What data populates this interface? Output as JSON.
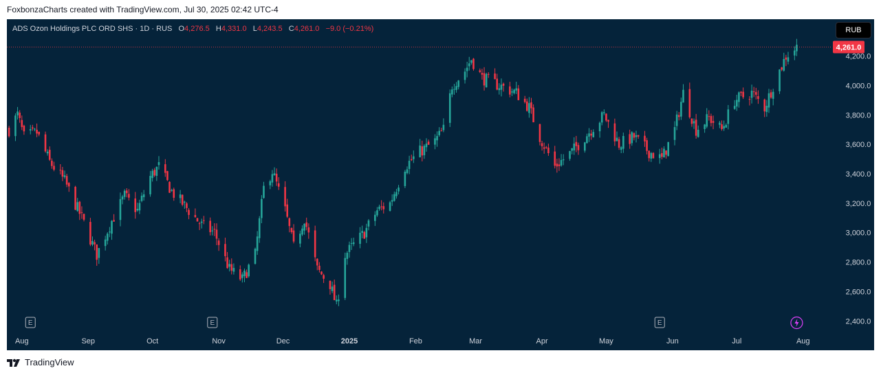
{
  "header": {
    "credit": "FoxbonzaCharts created with TradingView.com, Jul 30, 2025 02:42 UTC-4"
  },
  "legend": {
    "symbol": "ADS Ozon Holdings PLC ORD SHS · 1D · RUS",
    "o_label": "O",
    "o_value": "4,276.5",
    "h_label": "H",
    "h_value": "4,331.0",
    "l_label": "L",
    "l_value": "4,243.5",
    "c_label": "C",
    "c_value": "4,261.0",
    "change": "−9.0 (−0.21%)"
  },
  "currency_button": "RUB",
  "footer": {
    "brand": "TradingView"
  },
  "colors": {
    "up": "#26a69a",
    "down": "#f23645",
    "background": "#05233a",
    "axis_text": "#d1d4dc"
  },
  "icons": {
    "earnings": "earnings-marker-icon",
    "dividend": "lightning-event-icon",
    "logo": "tradingview-logo-icon"
  },
  "chart_data": {
    "type": "candlestick",
    "title": "ADS Ozon Holdings PLC ORD SHS · 1D · RUS",
    "currency": "RUB",
    "ylim": [
      2350,
      4450
    ],
    "y_ticks": [
      2400,
      2600,
      2800,
      3000,
      3200,
      3400,
      3600,
      3800,
      4000,
      4200,
      4400
    ],
    "y_tick_labels": [
      "2,400.0",
      "2,600.0",
      "2,800.0",
      "3,000.0",
      "3,200.0",
      "3,400.0",
      "3,600.0",
      "3,800.0",
      "4,000.0",
      "4,200.0",
      "4,400.0"
    ],
    "x_labels": [
      {
        "label": "Aug",
        "date": "2024-08-01"
      },
      {
        "label": "Sep",
        "date": "2024-09-01"
      },
      {
        "label": "Oct",
        "date": "2024-10-01"
      },
      {
        "label": "Nov",
        "date": "2024-11-01"
      },
      {
        "label": "Dec",
        "date": "2024-12-01"
      },
      {
        "label": "2025",
        "date": "2025-01-01"
      },
      {
        "label": "Feb",
        "date": "2025-02-01"
      },
      {
        "label": "Mar",
        "date": "2025-03-01"
      },
      {
        "label": "Apr",
        "date": "2025-04-01"
      },
      {
        "label": "May",
        "date": "2025-05-01"
      },
      {
        "label": "Jun",
        "date": "2025-06-01"
      },
      {
        "label": "Jul",
        "date": "2025-07-01"
      },
      {
        "label": "Aug",
        "date": "2025-08-01"
      }
    ],
    "last_price": 4261.0,
    "last_price_label": "4,261.0",
    "events": [
      {
        "type": "earnings",
        "label": "E",
        "date": "2024-08-05"
      },
      {
        "type": "earnings",
        "label": "E",
        "date": "2024-10-29"
      },
      {
        "type": "earnings",
        "label": "E",
        "date": "2025-05-26"
      },
      {
        "type": "dividend",
        "date": "2025-07-29"
      }
    ],
    "anchors": [
      [
        "2024-07-26",
        3700
      ],
      [
        "2024-07-30",
        3800
      ],
      [
        "2024-08-02",
        3650
      ],
      [
        "2024-08-08",
        3680
      ],
      [
        "2024-08-14",
        3480
      ],
      [
        "2024-08-21",
        3350
      ],
      [
        "2024-08-29",
        3100
      ],
      [
        "2024-09-05",
        2850
      ],
      [
        "2024-09-12",
        3080
      ],
      [
        "2024-09-18",
        3250
      ],
      [
        "2024-09-24",
        3150
      ],
      [
        "2024-09-30",
        3380
      ],
      [
        "2024-10-04",
        3450
      ],
      [
        "2024-10-10",
        3280
      ],
      [
        "2024-10-18",
        3150
      ],
      [
        "2024-10-24",
        3050
      ],
      [
        "2024-10-30",
        3000
      ],
      [
        "2024-11-06",
        2750
      ],
      [
        "2024-11-12",
        2680
      ],
      [
        "2024-11-18",
        2850
      ],
      [
        "2024-11-22",
        3300
      ],
      [
        "2024-11-26",
        3420
      ],
      [
        "2024-12-02",
        3150
      ],
      [
        "2024-12-06",
        2900
      ],
      [
        "2024-12-11",
        3100
      ],
      [
        "2024-12-17",
        2750
      ],
      [
        "2024-12-23",
        2650
      ],
      [
        "2024-12-26",
        2500
      ],
      [
        "2024-12-30",
        2850
      ],
      [
        "2025-01-08",
        3000
      ],
      [
        "2025-01-14",
        3150
      ],
      [
        "2025-01-20",
        3200
      ],
      [
        "2025-01-27",
        3450
      ],
      [
        "2025-02-03",
        3550
      ],
      [
        "2025-02-10",
        3620
      ],
      [
        "2025-02-14",
        3700
      ],
      [
        "2025-02-18",
        4000
      ],
      [
        "2025-02-24",
        4100
      ],
      [
        "2025-02-27",
        4180
      ],
      [
        "2025-03-04",
        4050
      ],
      [
        "2025-03-12",
        4000
      ],
      [
        "2025-03-20",
        3950
      ],
      [
        "2025-03-26",
        3850
      ],
      [
        "2025-03-31",
        3650
      ],
      [
        "2025-04-07",
        3450
      ],
      [
        "2025-04-15",
        3550
      ],
      [
        "2025-04-24",
        3700
      ],
      [
        "2025-04-30",
        3800
      ],
      [
        "2025-05-07",
        3600
      ],
      [
        "2025-05-14",
        3650
      ],
      [
        "2025-05-21",
        3550
      ],
      [
        "2025-05-27",
        3500
      ],
      [
        "2025-06-02",
        3700
      ],
      [
        "2025-06-06",
        3950
      ],
      [
        "2025-06-12",
        3700
      ],
      [
        "2025-06-18",
        3780
      ],
      [
        "2025-06-24",
        3700
      ],
      [
        "2025-06-30",
        3900
      ],
      [
        "2025-07-08",
        3950
      ],
      [
        "2025-07-14",
        3850
      ],
      [
        "2025-07-18",
        4000
      ],
      [
        "2025-07-24",
        4200
      ],
      [
        "2025-07-29",
        4261
      ]
    ]
  }
}
